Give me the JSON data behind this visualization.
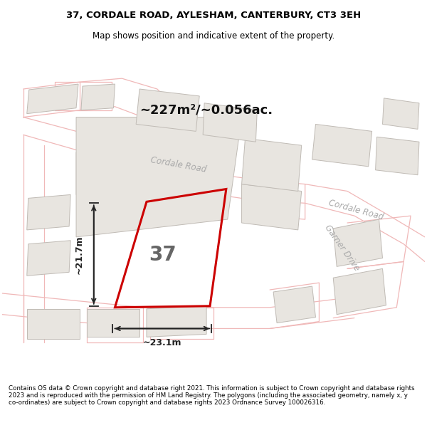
{
  "title_line1": "37, CORDALE ROAD, AYLESHAM, CANTERBURY, CT3 3EH",
  "title_line2": "Map shows position and indicative extent of the property.",
  "area_text": "~227m²/~0.056ac.",
  "property_number": "37",
  "dim_width": "~23.1m",
  "dim_height": "~21.7m",
  "road_label_cordale_top": "Cordale Road",
  "road_label_cordale_right": "Cordale Road",
  "road_label_garner": "Garner Drive",
  "footer_text": "Contains OS data © Crown copyright and database right 2021. This information is subject to Crown copyright and database rights 2023 and is reproduced with the permission of HM Land Registry. The polygons (including the associated geometry, namely x, y co-ordinates) are subject to Crown copyright and database rights 2023 Ordnance Survey 100026316.",
  "map_bg": "#ffffff",
  "property_edge": "#cc0000",
  "road_line_color": "#f0b8b8",
  "building_edge_color": "#c0bbb5",
  "building_fill": "#e8e5e0",
  "dim_color": "#222222",
  "road_label_color": "#aaaaaa",
  "title_color": "#000000",
  "footer_bg": "#ffffff",
  "area_text_color": "#111111"
}
